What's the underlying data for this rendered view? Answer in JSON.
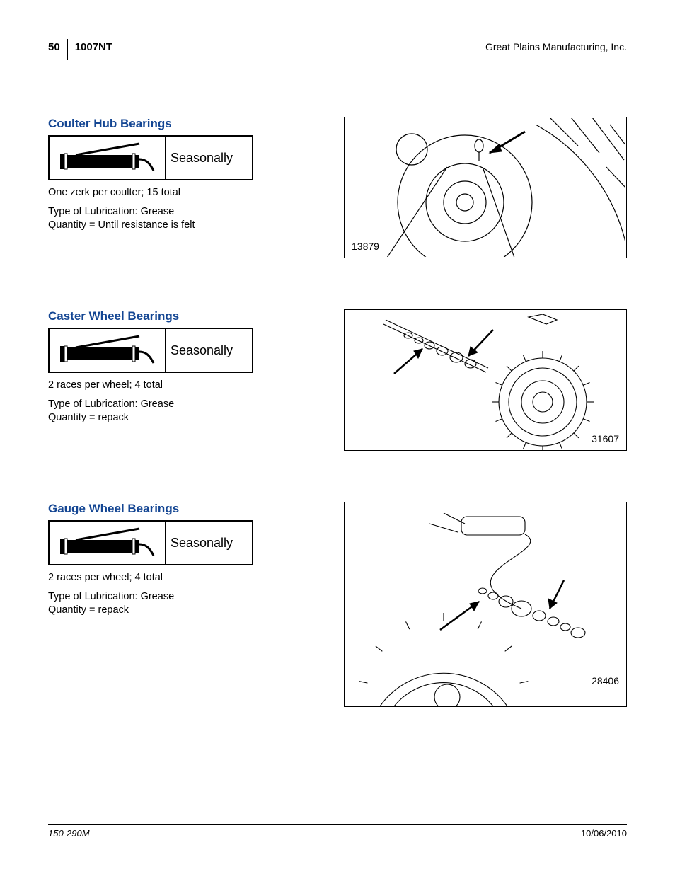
{
  "header": {
    "page_number": "50",
    "model": "1007NT",
    "company": "Great Plains Manufacturing, Inc."
  },
  "sections": [
    {
      "title": "Coulter Hub Bearings",
      "interval": "Seasonally",
      "note": "One zerk per coulter; 15 total",
      "lube_type": "Type of Lubrication: Grease",
      "qty": "Quantity = Until resistance is felt",
      "fig_num": "13879",
      "fig_pos": "bl",
      "fig_class": "f1"
    },
    {
      "title": "Caster Wheel Bearings",
      "interval": "Seasonally",
      "note": "2 races per wheel; 4 total",
      "lube_type": "Type of Lubrication: Grease",
      "qty": "Quantity = repack",
      "fig_num": "31607",
      "fig_pos": "br",
      "fig_class": "f2"
    },
    {
      "title": "Gauge Wheel Bearings",
      "interval": "Seasonally",
      "note": "2 races per wheel; 4 total",
      "lube_type": "Type of Lubrication: Grease",
      "qty": "Quantity = repack",
      "fig_num": "28406",
      "fig_pos": "br2",
      "fig_class": "f3"
    }
  ],
  "footer": {
    "doc_num": "150-290M",
    "date": "10/06/2010"
  },
  "colors": {
    "title_color": "#144693",
    "line_color": "#000000",
    "background": "#ffffff"
  }
}
